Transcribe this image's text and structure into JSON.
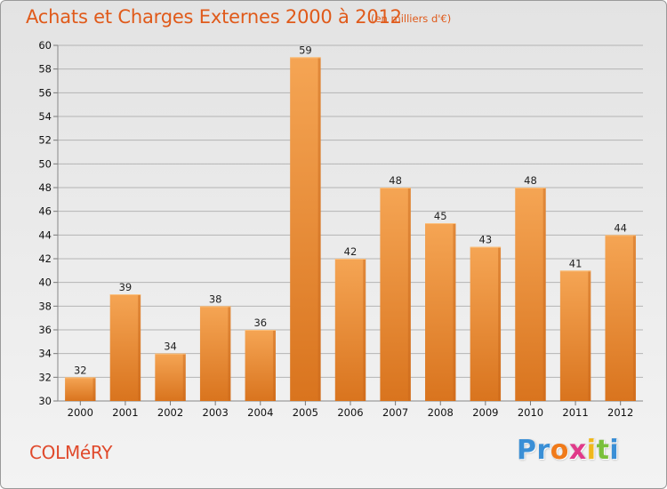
{
  "header": {
    "title": "Achats et Charges Externes 2000 à 2012",
    "unit": "(en milliers d'€)"
  },
  "footer": {
    "town": "COLMéRY",
    "brand_letters": [
      "P",
      "r",
      "o",
      "x",
      "i",
      "t",
      "i"
    ],
    "brand_colors": [
      "#3a8fd6",
      "#3a8fd6",
      "#f07a1a",
      "#e03a8a",
      "#f0b81a",
      "#7ac03a",
      "#3a8fd6"
    ]
  },
  "colors": {
    "bar_top": "#f5a554",
    "bar_bottom": "#d9741e",
    "bar_side": "#c8651a",
    "grid": "#b4b4b4",
    "background": "#e8e8e8"
  },
  "chart_data": {
    "type": "bar",
    "categories": [
      "2000",
      "2001",
      "2002",
      "2003",
      "2004",
      "2005",
      "2006",
      "2007",
      "2008",
      "2009",
      "2010",
      "2011",
      "2012"
    ],
    "values": [
      32,
      39,
      34,
      38,
      36,
      59,
      42,
      48,
      45,
      43,
      48,
      41,
      44
    ],
    "title": "Achats et Charges Externes 2000 à 2012",
    "xlabel": "",
    "ylabel": "",
    "ylim": [
      30,
      60
    ],
    "yticks": [
      30,
      32,
      34,
      36,
      38,
      40,
      42,
      44,
      46,
      48,
      50,
      52,
      54,
      56,
      58,
      60
    ],
    "grid": true,
    "data_labels": true
  }
}
